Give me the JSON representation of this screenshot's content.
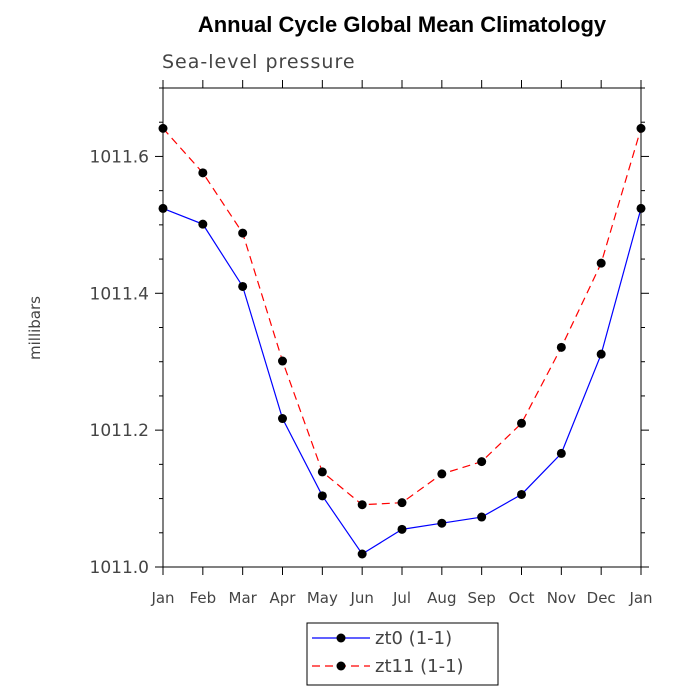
{
  "chart_data": {
    "type": "line",
    "title": "Annual Cycle Global Mean Climatology",
    "subtitle": "Sea-level pressure",
    "xlabel": "",
    "ylabel": "millibars",
    "categories": [
      "Jan",
      "Feb",
      "Mar",
      "Apr",
      "May",
      "Jun",
      "Jul",
      "Aug",
      "Sep",
      "Oct",
      "Nov",
      "Dec",
      "Jan"
    ],
    "ylim": [
      1011.0,
      1011.7
    ],
    "yticks": [
      1011.0,
      1011.2,
      1011.4,
      1011.6
    ],
    "ytick_labels": [
      "1011.0",
      "1011.2",
      "1011.4",
      "1011.6"
    ],
    "series": [
      {
        "name": "zt0 (1-1)",
        "color": "#0000ff",
        "dash": "solid",
        "values": [
          1011.524,
          1011.501,
          1011.41,
          1011.217,
          1011.104,
          1011.019,
          1011.055,
          1011.064,
          1011.073,
          1011.106,
          1011.166,
          1011.311,
          1011.524
        ]
      },
      {
        "name": "zt11 (1-1)",
        "color": "#ff0000",
        "dash": "dashed",
        "values": [
          1011.641,
          1011.576,
          1011.488,
          1011.301,
          1011.139,
          1011.091,
          1011.094,
          1011.136,
          1011.154,
          1011.21,
          1011.321,
          1011.444,
          1011.641
        ]
      }
    ],
    "grid": false,
    "legend_position": "bottom-center",
    "marker": "filled-circle",
    "marker_color": "#000000"
  }
}
